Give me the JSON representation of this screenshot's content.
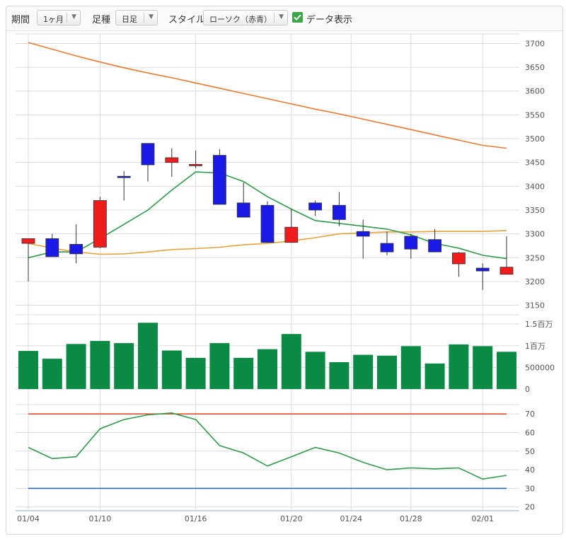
{
  "toolbar": {
    "period_label": "期間",
    "period_value": "1ヶ月",
    "bar_label": "足種",
    "bar_value": "日足",
    "style_label": "スタイル",
    "style_value": "ローソク（赤青）",
    "data_display_label": "データ表示",
    "data_display_checked": true
  },
  "chart_data": {
    "type": "candlestick",
    "price": {
      "ylim": [
        3130,
        3720
      ],
      "yticks": [
        3150,
        3200,
        3250,
        3300,
        3350,
        3400,
        3450,
        3500,
        3550,
        3600,
        3650,
        3700
      ],
      "candles": [
        {
          "open": 3280,
          "close": 3290,
          "high": 3290,
          "low": 3200,
          "color": "red"
        },
        {
          "open": 3290,
          "close": 3252,
          "high": 3300,
          "low": 3252,
          "color": "blue"
        },
        {
          "open": 3278,
          "close": 3258,
          "high": 3320,
          "low": 3238,
          "color": "blue"
        },
        {
          "open": 3272,
          "close": 3370,
          "high": 3378,
          "low": 3270,
          "color": "red"
        },
        {
          "open": 3421,
          "close": 3419,
          "high": 3432,
          "low": 3370,
          "color": "blue"
        },
        {
          "open": 3490,
          "close": 3445,
          "high": 3490,
          "low": 3410,
          "color": "blue"
        },
        {
          "open": 3450,
          "close": 3460,
          "high": 3480,
          "low": 3420,
          "color": "red"
        },
        {
          "open": 3443,
          "close": 3446,
          "high": 3475,
          "low": 3438,
          "color": "red"
        },
        {
          "open": 3465,
          "close": 3362,
          "high": 3478,
          "low": 3362,
          "color": "blue"
        },
        {
          "open": 3365,
          "close": 3335,
          "high": 3408,
          "low": 3335,
          "color": "blue"
        },
        {
          "open": 3360,
          "close": 3282,
          "high": 3368,
          "low": 3282,
          "color": "blue"
        },
        {
          "open": 3282,
          "close": 3314,
          "high": 3352,
          "low": 3282,
          "color": "red"
        },
        {
          "open": 3365,
          "close": 3350,
          "high": 3370,
          "low": 3338,
          "color": "blue"
        },
        {
          "open": 3360,
          "close": 3330,
          "high": 3388,
          "low": 3316,
          "color": "blue"
        },
        {
          "open": 3305,
          "close": 3295,
          "high": 3330,
          "low": 3248,
          "color": "blue"
        },
        {
          "open": 3280,
          "close": 3262,
          "high": 3305,
          "low": 3255,
          "color": "blue"
        },
        {
          "open": 3295,
          "close": 3268,
          "high": 3300,
          "low": 3248,
          "color": "blue"
        },
        {
          "open": 3288,
          "close": 3262,
          "high": 3310,
          "low": 3262,
          "color": "blue"
        },
        {
          "open": 3237,
          "close": 3260,
          "high": 3262,
          "low": 3210,
          "color": "red"
        },
        {
          "open": 3228,
          "close": 3222,
          "high": 3238,
          "low": 3182,
          "color": "blue"
        },
        {
          "open": 3215,
          "close": 3230,
          "high": 3295,
          "low": 3215,
          "color": "red"
        }
      ],
      "ma_short": {
        "color": "#2e9b4a",
        "values": [
          3250,
          3262,
          3262,
          3290,
          3320,
          3350,
          3392,
          3430,
          3428,
          3410,
          3378,
          3352,
          3328,
          3322,
          3316,
          3310,
          3298,
          3280,
          3270,
          3255,
          3248
        ]
      },
      "ma_mid": {
        "color": "#e8a23a",
        "values": [
          3280,
          3270,
          3262,
          3257,
          3258,
          3262,
          3267,
          3269,
          3272,
          3277,
          3280,
          3285,
          3292,
          3300,
          3302,
          3304,
          3304,
          3305,
          3305,
          3305,
          3307
        ]
      },
      "ma_long": {
        "color": "#ee7a30",
        "values": [
          3702,
          3688,
          3674,
          3661,
          3649,
          3638,
          3628,
          3617,
          3606,
          3595,
          3584,
          3573,
          3562,
          3552,
          3541,
          3530,
          3519,
          3508,
          3497,
          3486,
          3480
        ]
      }
    },
    "volume": {
      "ylim": [
        0,
        1600000
      ],
      "ytick_labels": [
        "1.5百万",
        "1百万",
        "500000",
        "0"
      ],
      "ytick_values": [
        1500000,
        1000000,
        500000,
        0
      ],
      "color": "#0a8a45",
      "values": [
        880000,
        700000,
        1040000,
        1110000,
        1060000,
        1530000,
        890000,
        720000,
        1060000,
        720000,
        920000,
        1270000,
        860000,
        620000,
        790000,
        770000,
        990000,
        590000,
        1030000,
        990000,
        860000
      ]
    },
    "oscillator": {
      "ylim": [
        18,
        75
      ],
      "yticks": [
        20,
        30,
        40,
        50,
        60,
        70
      ],
      "upper_line": {
        "value": 70,
        "color": "#e0502c"
      },
      "lower_line": {
        "value": 30,
        "color": "#2a6bb5"
      },
      "line_color": "#2e9b4a",
      "values": [
        52,
        46,
        47,
        62,
        67,
        69.5,
        70.5,
        67,
        53,
        49,
        42,
        47,
        52,
        49,
        44,
        40,
        41,
        40.5,
        41,
        35,
        37
      ]
    },
    "x_labels": [
      {
        "index": 0,
        "label": "01/04"
      },
      {
        "index": 3,
        "label": "01/10"
      },
      {
        "index": 7,
        "label": "01/16"
      },
      {
        "index": 11,
        "label": "01/20"
      },
      {
        "index": 13.5,
        "label": "01/24"
      },
      {
        "index": 16,
        "label": "01/28"
      },
      {
        "index": 19,
        "label": "02/01"
      }
    ],
    "colors": {
      "up": "#ee1c1c",
      "down": "#1a1ae6",
      "grid": "#dcdcdc"
    }
  }
}
